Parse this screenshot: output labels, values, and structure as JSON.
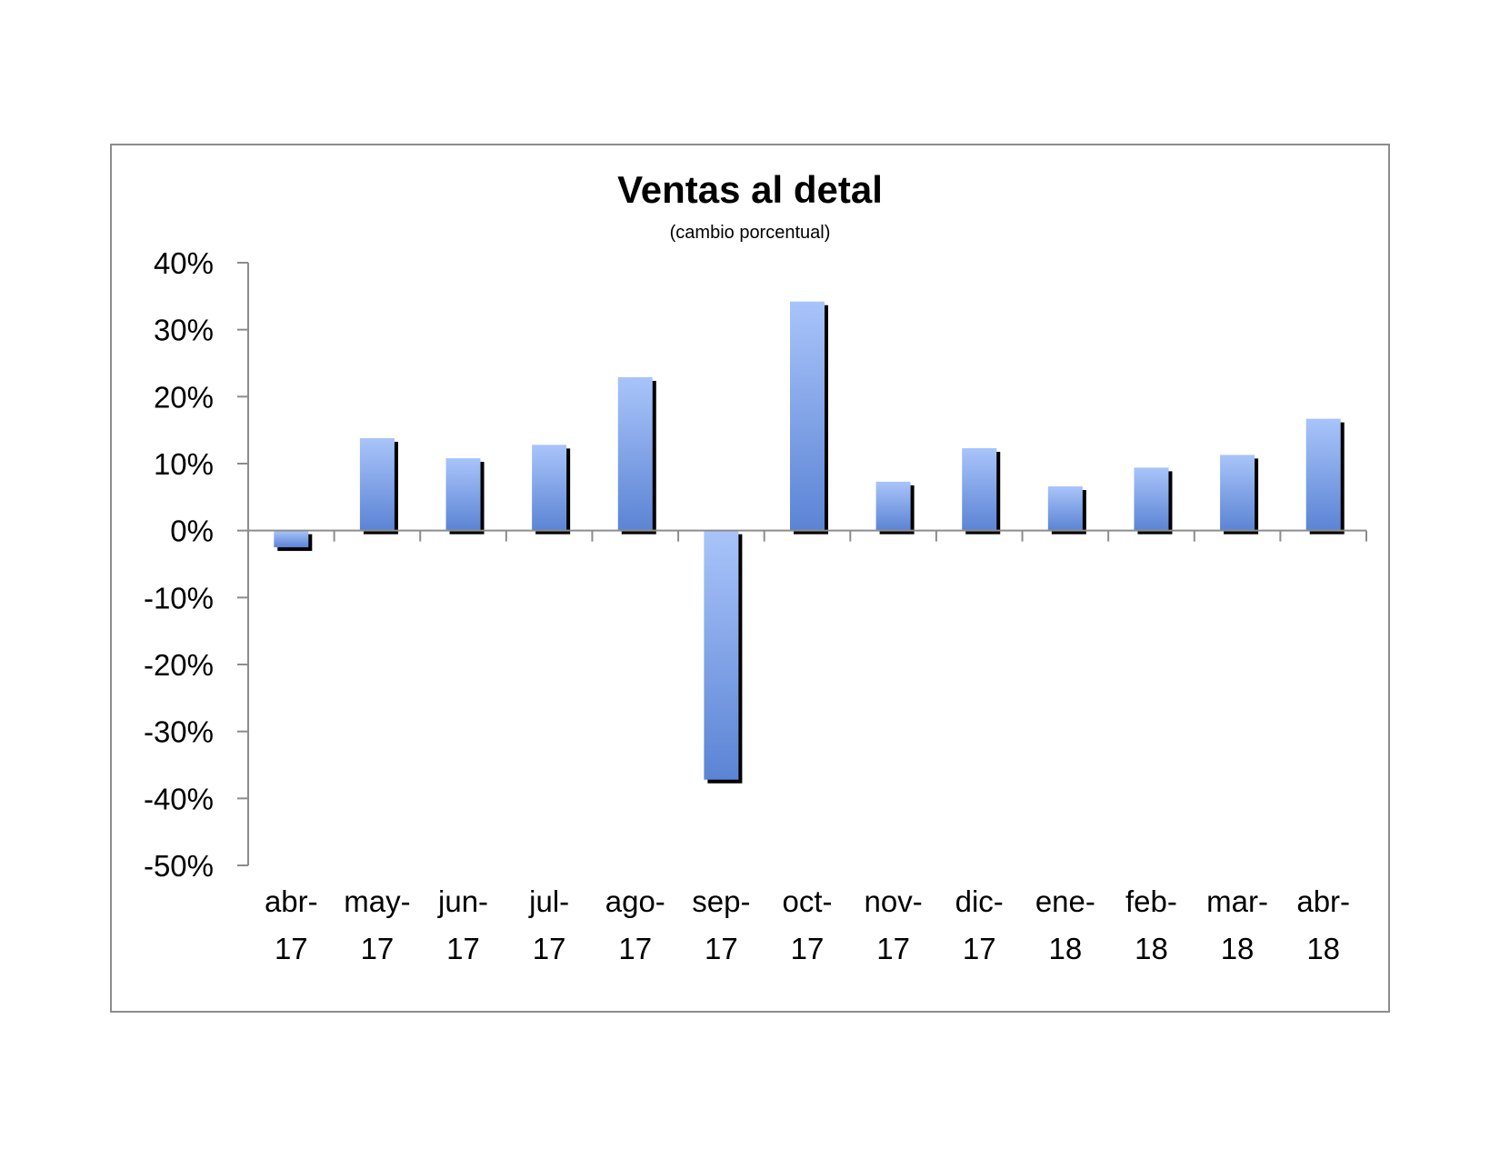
{
  "chart_data": {
    "type": "bar",
    "title": "Ventas al detal",
    "subtitle": "(cambio porcentual)",
    "xlabel": "",
    "ylabel": "",
    "ylim": [
      -50,
      40
    ],
    "yticks": [
      40,
      30,
      20,
      10,
      0,
      -10,
      -20,
      -30,
      -40,
      -50
    ],
    "ytick_labels": [
      "40%",
      "30%",
      "20%",
      "10%",
      "0%",
      "-10%",
      "-20%",
      "-30%",
      "-40%",
      "-50%"
    ],
    "categories": [
      [
        "abr-",
        "17"
      ],
      [
        "may-",
        "17"
      ],
      [
        "jun-",
        "17"
      ],
      [
        "jul-",
        "17"
      ],
      [
        "ago-",
        "17"
      ],
      [
        "sep-",
        "17"
      ],
      [
        "oct-",
        "17"
      ],
      [
        "nov-",
        "17"
      ],
      [
        "dic-",
        "17"
      ],
      [
        "ene-",
        "18"
      ],
      [
        "feb-",
        "18"
      ],
      [
        "mar-",
        "18"
      ],
      [
        "abr-",
        "18"
      ]
    ],
    "values": [
      -2.5,
      13.8,
      10.8,
      12.8,
      22.9,
      -37.2,
      34.2,
      7.3,
      12.3,
      6.6,
      9.4,
      11.3,
      16.7
    ],
    "grid": false,
    "legend": "none",
    "colors": {
      "bar_top": "#a9c4fa",
      "bar_bottom": "#5b84d4",
      "bar_shadow": "#000000",
      "axis": "#8c8c8c",
      "frame": "#8c8c8c"
    }
  }
}
